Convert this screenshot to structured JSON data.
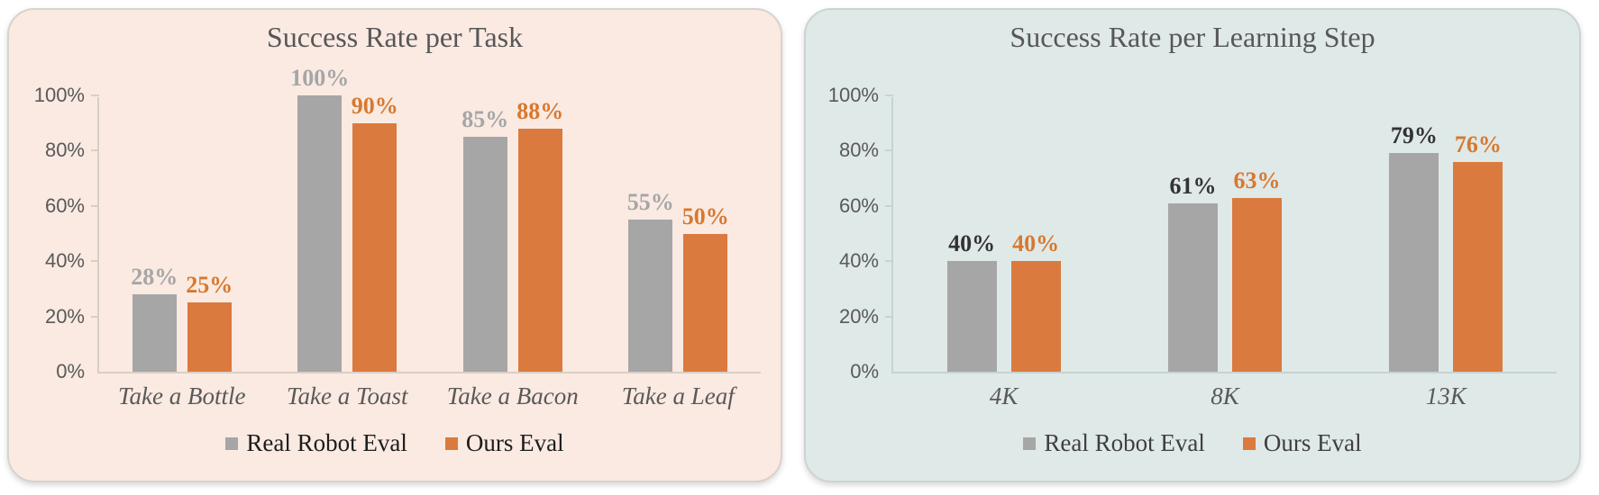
{
  "page": {
    "background": "#ffffff"
  },
  "chart_data": [
    {
      "type": "bar",
      "title": "Success Rate per Task",
      "categories": [
        "Take a Bottle",
        "Take a Toast",
        "Take a Bacon",
        "Take a Leaf"
      ],
      "series": [
        {
          "name": "Real Robot Eval",
          "values": [
            28,
            100,
            85,
            55
          ],
          "color": "#a6a6a6",
          "label_color": "#a6a6a6"
        },
        {
          "name": "Ours Eval",
          "values": [
            25,
            90,
            88,
            50
          ],
          "color": "#db7a3e",
          "label_color": "#d8782f"
        }
      ],
      "value_suffix": "%",
      "ylim": [
        0,
        100
      ],
      "yticks": [
        0,
        20,
        40,
        60,
        80,
        100
      ],
      "grid": false,
      "legend_position": "bottom",
      "colors": {
        "background": "#faeae2",
        "border": "#dad2cb",
        "axis": "#d8cec6",
        "tick_label": "#595959",
        "category_label": "#595959",
        "title": "#575757",
        "legend_text": "#1d1d1d"
      }
    },
    {
      "type": "bar",
      "title": "Success Rate per Learning Step",
      "categories": [
        "4K",
        "8K",
        "13K"
      ],
      "series": [
        {
          "name": "Real Robot Eval",
          "values": [
            40,
            61,
            79
          ],
          "color": "#a6a6a6",
          "label_color": "#333333"
        },
        {
          "name": "Ours Eval",
          "values": [
            40,
            63,
            76
          ],
          "color": "#db7a3e",
          "label_color": "#d8782f"
        }
      ],
      "value_suffix": "%",
      "ylim": [
        0,
        100
      ],
      "yticks": [
        0,
        20,
        40,
        60,
        80,
        100
      ],
      "grid": false,
      "legend_position": "bottom",
      "colors": {
        "background": "#dfe9e8",
        "border": "#ccd4d3",
        "axis": "#c7d3d1",
        "tick_label": "#595959",
        "category_label": "#595959",
        "title": "#575757",
        "legend_text": "#3f3f3f"
      }
    }
  ]
}
